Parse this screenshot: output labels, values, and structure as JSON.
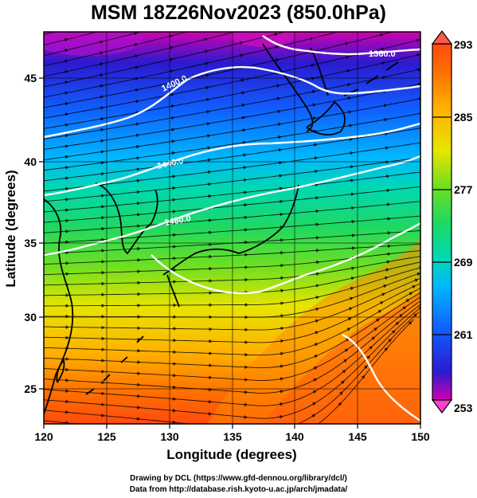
{
  "title": "MSM 18Z26Nov2023 (850.0hPa)",
  "axes": {
    "xlabel": "Longitude (degrees)",
    "ylabel": "Latitude  (degrees)",
    "xticks": [
      120,
      125,
      130,
      135,
      140,
      145,
      150
    ],
    "yticks": [
      25,
      30,
      35,
      40,
      45
    ],
    "xlim": [
      120,
      150
    ],
    "ylim": [
      22.4,
      47.6
    ]
  },
  "colorbar": {
    "ticks": [
      "293",
      "285",
      "277",
      "269",
      "261",
      "253"
    ],
    "range": [
      253,
      293
    ],
    "colors": [
      "#e00080",
      "#8000c0",
      "#2020d0",
      "#0070ff",
      "#00c8e0",
      "#00d060",
      "#80e020",
      "#e8e000",
      "#ff9000",
      "#ff3800"
    ]
  },
  "contours": {
    "labels": [
      "1360.0",
      "1400.0",
      "1440.0",
      "1480.0"
    ],
    "color": "#ffffff"
  },
  "credits": {
    "line1": "Drawing by DCL (https://www.gfd-dennou.org/library/dcl/)",
    "line2": "Data from http://database.rish.kyoto-u.ac.jp/arch/jmadata/"
  },
  "chart_data": {
    "type": "heatmap",
    "title": "MSM 18Z26Nov2023 (850.0hPa)",
    "xlabel": "Longitude (degrees)",
    "ylabel": "Latitude  (degrees)",
    "xlim": [
      120,
      150
    ],
    "ylim": [
      22.4,
      47.6
    ],
    "grid": true,
    "colorbar_range": [
      253,
      293
    ],
    "colorbar_ticks": [
      293,
      285,
      277,
      269,
      261,
      253
    ],
    "contour_levels": [
      "1360.0",
      "1400.0",
      "1440.0",
      "1480.0"
    ],
    "overlays": [
      "temperature (shaded)",
      "geopotential height (white contours)",
      "wind (streamlines)"
    ]
  }
}
